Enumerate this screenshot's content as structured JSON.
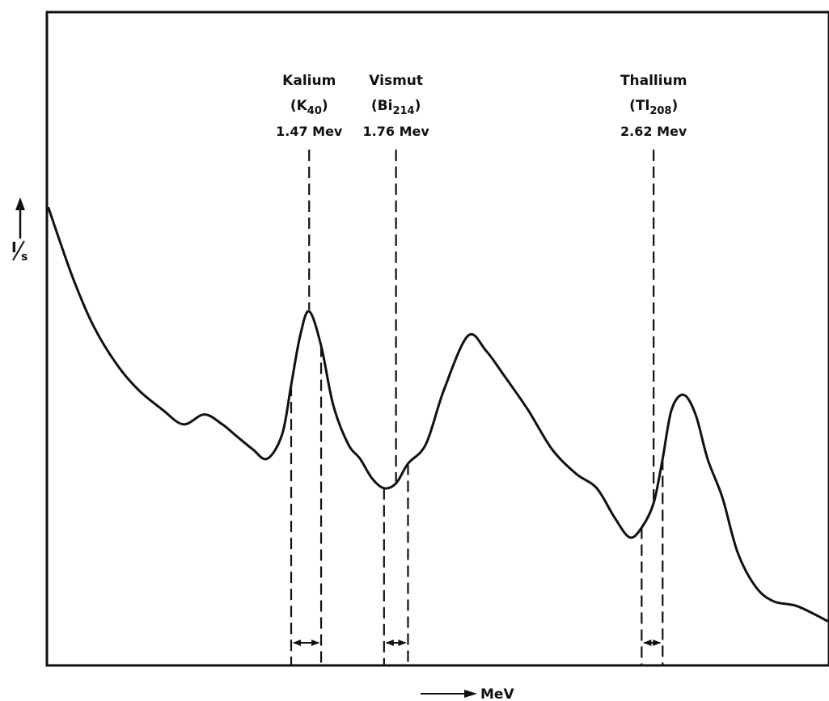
{
  "chart_data": {
    "type": "line",
    "title": "",
    "xlabel": "MeV",
    "ylabel": "I/s",
    "ylabel_parts": {
      "numerator": "I",
      "denominator": "s"
    },
    "xlim": [
      0.6,
      3.2
    ],
    "ylim": [
      0,
      100
    ],
    "grid": false,
    "legend": "none",
    "series": [
      {
        "x": [
          0.6,
          0.68,
          0.75,
          0.83,
          0.9,
          0.98,
          1.05,
          1.12,
          1.18,
          1.22,
          1.28,
          1.33,
          1.38,
          1.41,
          1.44,
          1.47,
          1.51,
          1.55,
          1.6,
          1.64,
          1.68,
          1.72,
          1.76,
          1.8,
          1.86,
          1.92,
          2.0,
          2.06,
          2.12,
          2.2,
          2.28,
          2.36,
          2.43,
          2.49,
          2.54,
          2.58,
          2.62,
          2.65,
          2.68,
          2.72,
          2.76,
          2.8,
          2.85,
          2.9,
          2.96,
          3.02,
          3.1,
          3.2
        ],
        "y": [
          84,
          70,
          60,
          52,
          47,
          43,
          40,
          42,
          40,
          38,
          35,
          33,
          38,
          48,
          58,
          63,
          56,
          44,
          36,
          33,
          29,
          27,
          28,
          32,
          36,
          47,
          58,
          55,
          50,
          43,
          35,
          30,
          27,
          21,
          17,
          19,
          24,
          33,
          43,
          46,
          42,
          33,
          25,
          14,
          7,
          4,
          3,
          0
        ]
      }
    ],
    "annotations": [
      {
        "element": "Kalium",
        "isotope": "K",
        "mass": "40",
        "energy": "1.47 Mev",
        "x": 1.47,
        "window": [
          1.41,
          1.51
        ]
      },
      {
        "element": "Vismut",
        "isotope": "Bi",
        "mass": "214",
        "energy": "1.76 Mev",
        "x": 1.76,
        "window": [
          1.72,
          1.8
        ]
      },
      {
        "element": "Thallium",
        "isotope": "Tl",
        "mass": "208",
        "energy": "2.62 Mev",
        "x": 2.62,
        "window": [
          2.58,
          2.65
        ]
      }
    ]
  }
}
